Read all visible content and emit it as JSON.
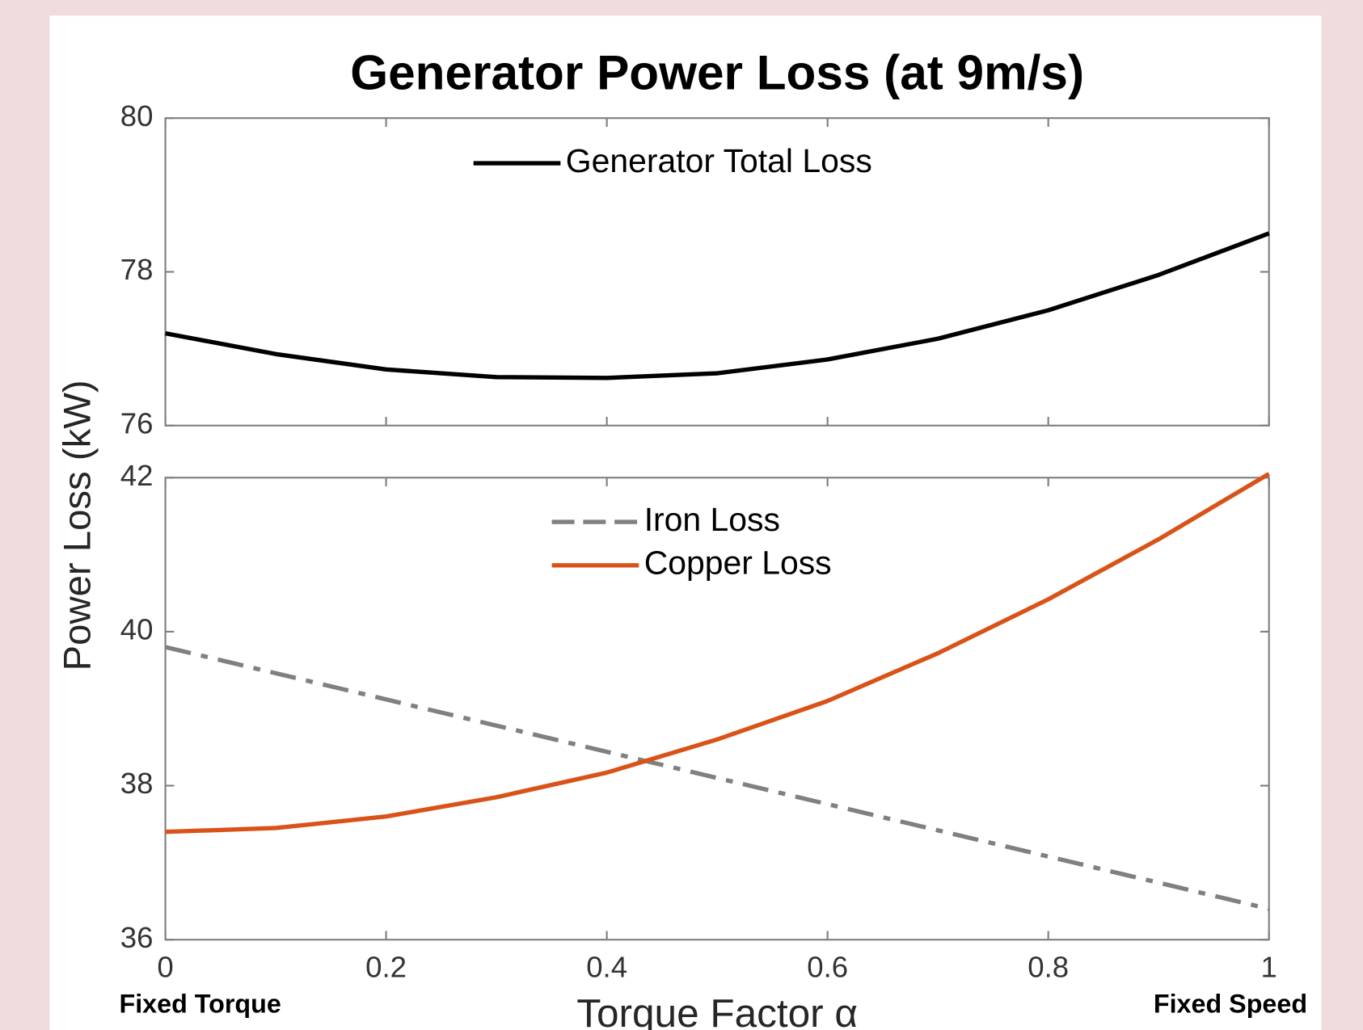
{
  "chart_data": [
    {
      "type": "line",
      "title": "Generator Power Loss (at 9m/s)",
      "ylabel": "Power Loss (kW)",
      "x": [
        0,
        0.1,
        0.2,
        0.3,
        0.4,
        0.5,
        0.6,
        0.7,
        0.8,
        0.9,
        1
      ],
      "series": [
        {
          "name": "Generator Total Loss",
          "color": "#000000",
          "dash": "solid",
          "values": [
            77.2,
            76.93,
            76.73,
            76.63,
            76.62,
            76.68,
            76.86,
            77.13,
            77.5,
            77.96,
            78.5
          ]
        }
      ],
      "xlim": [
        0,
        1
      ],
      "xticks": [
        0,
        0.2,
        0.4,
        0.6,
        0.8,
        1
      ],
      "show_xtick_labels": false,
      "ylim": [
        76,
        80
      ],
      "yticks": [
        76,
        78,
        80
      ],
      "legend": "north",
      "grid": false
    },
    {
      "type": "line",
      "xlabel": "Torque Factor α",
      "annotations": [
        "Fixed Torque",
        "Fixed Speed"
      ],
      "x": [
        0,
        0.1,
        0.2,
        0.3,
        0.4,
        0.5,
        0.6,
        0.7,
        0.8,
        0.9,
        1
      ],
      "series": [
        {
          "name": "Iron Loss",
          "color": "#808080",
          "dash": "dashdot",
          "values": [
            39.8,
            39.46,
            39.12,
            38.78,
            38.44,
            38.1,
            37.76,
            37.42,
            37.08,
            36.74,
            36.4
          ]
        },
        {
          "name": "Copper Loss",
          "color": "#d95319",
          "dash": "solid",
          "values": [
            37.4,
            37.45,
            37.6,
            37.85,
            38.17,
            38.6,
            39.1,
            39.72,
            40.42,
            41.2,
            42.05
          ]
        }
      ],
      "xlim": [
        0,
        1
      ],
      "xticks": [
        0,
        0.2,
        0.4,
        0.6,
        0.8,
        1
      ],
      "show_xtick_labels": true,
      "ylim": [
        36,
        42
      ],
      "yticks": [
        36,
        38,
        40,
        42
      ],
      "legend": "north",
      "grid": false
    }
  ]
}
